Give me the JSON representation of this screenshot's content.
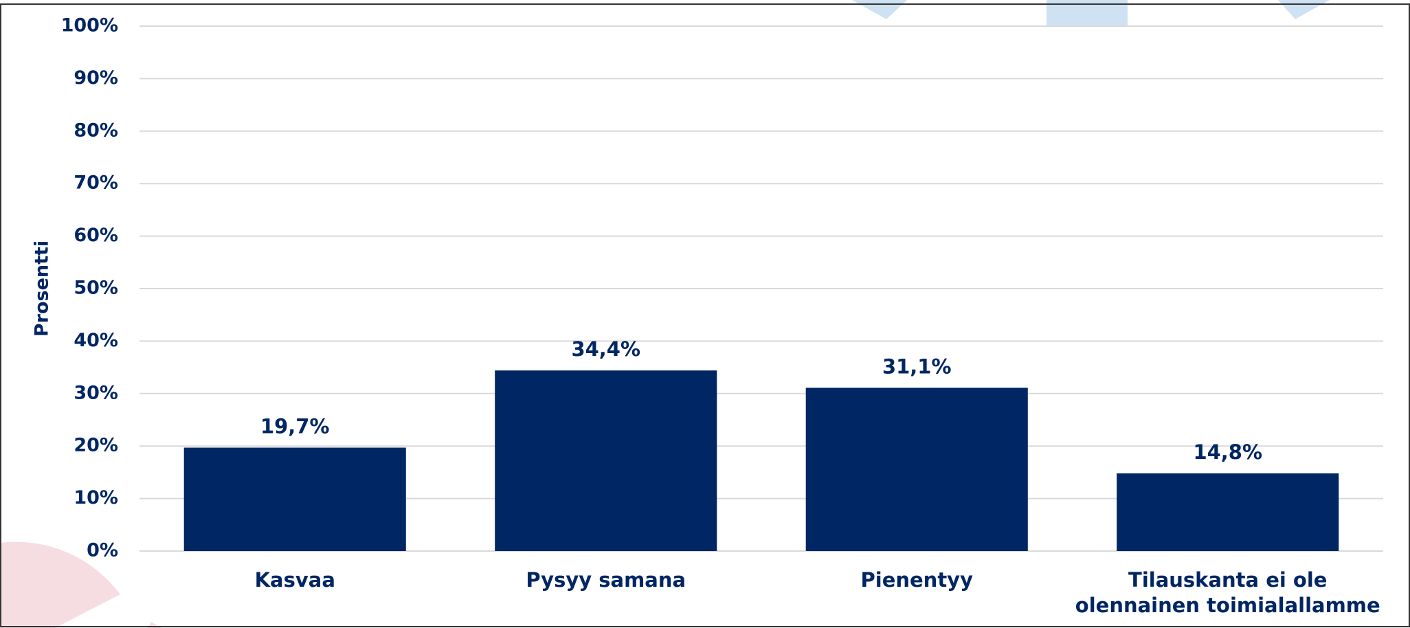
{
  "chart_data": {
    "type": "bar",
    "y_label": "Prosentti",
    "categories": [
      "Kasvaa",
      "Pysyy samana",
      "Pienentyy",
      "Tilauskanta ei ole olennainen toimialallamme"
    ],
    "values": [
      19.7,
      34.4,
      31.1,
      14.8
    ],
    "value_labels": [
      "19,7%",
      "34,4%",
      "31,1%",
      "14,8%"
    ],
    "color": "#002663",
    "ylim": [
      0,
      100
    ],
    "yticks": [
      {
        "value": 0,
        "label": "0%"
      },
      {
        "value": 10,
        "label": "10%"
      },
      {
        "value": 20,
        "label": "20%"
      },
      {
        "value": 30,
        "label": "30%"
      },
      {
        "value": 40,
        "label": "40%"
      },
      {
        "value": 50,
        "label": "50%"
      },
      {
        "value": 60,
        "label": "60%"
      },
      {
        "value": 70,
        "label": "70%"
      },
      {
        "value": 80,
        "label": "80%"
      },
      {
        "value": 90,
        "label": "90%"
      },
      {
        "value": 100,
        "label": "100%"
      }
    ],
    "grid": true
  }
}
